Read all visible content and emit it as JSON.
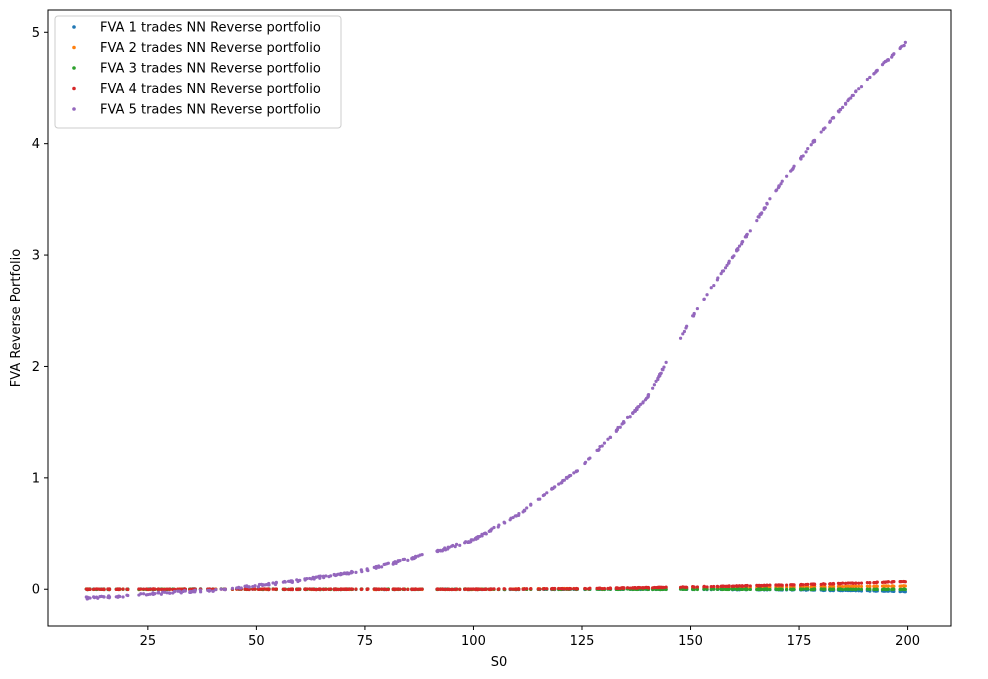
{
  "chart_data": {
    "type": "scatter",
    "title": "",
    "xlabel": "S0",
    "ylabel": "FVA Reverse Portfolio",
    "xlim": [
      2,
      210
    ],
    "ylim": [
      -0.33,
      5.2
    ],
    "xticks": [
      25,
      50,
      75,
      100,
      125,
      150,
      175,
      200
    ],
    "yticks": [
      0,
      1,
      2,
      3,
      4,
      5
    ],
    "grid": false,
    "legend_position": "top-left",
    "series": [
      {
        "name": "FVA 1 trades NN Reverse portfolio",
        "color": "#1f77b4",
        "curve": [
          [
            10,
            0.0
          ],
          [
            100,
            0.0
          ],
          [
            150,
            0.0
          ],
          [
            175,
            -0.005
          ],
          [
            200,
            -0.02
          ]
        ]
      },
      {
        "name": "FVA 2 trades NN Reverse portfolio",
        "color": "#ff7f0e",
        "curve": [
          [
            10,
            0.0
          ],
          [
            100,
            0.0
          ],
          [
            150,
            0.01
          ],
          [
            175,
            0.02
          ],
          [
            200,
            0.03
          ]
        ]
      },
      {
        "name": "FVA 3 trades NN Reverse portfolio",
        "color": "#2ca02c",
        "curve": [
          [
            10,
            0.0
          ],
          [
            100,
            0.0
          ],
          [
            150,
            0.0
          ],
          [
            175,
            0.0
          ],
          [
            200,
            0.0
          ]
        ]
      },
      {
        "name": "FVA 4 trades NN Reverse portfolio",
        "color": "#d62728",
        "curve": [
          [
            10,
            0.0
          ],
          [
            100,
            0.0
          ],
          [
            125,
            0.005
          ],
          [
            150,
            0.02
          ],
          [
            175,
            0.04
          ],
          [
            200,
            0.07
          ]
        ]
      },
      {
        "name": "FVA 5 trades NN Reverse portfolio",
        "color": "#9467bd",
        "curve": [
          [
            10,
            -0.08
          ],
          [
            20,
            -0.06
          ],
          [
            30,
            -0.03
          ],
          [
            40,
            -0.01
          ],
          [
            50,
            0.03
          ],
          [
            60,
            0.08
          ],
          [
            75,
            0.17
          ],
          [
            90,
            0.32
          ],
          [
            100,
            0.44
          ],
          [
            110,
            0.66
          ],
          [
            125,
            1.1
          ],
          [
            140,
            1.72
          ],
          [
            150,
            2.42
          ],
          [
            160,
            3.0
          ],
          [
            170,
            3.6
          ],
          [
            180,
            4.1
          ],
          [
            190,
            4.55
          ],
          [
            200,
            4.92
          ]
        ]
      }
    ]
  }
}
